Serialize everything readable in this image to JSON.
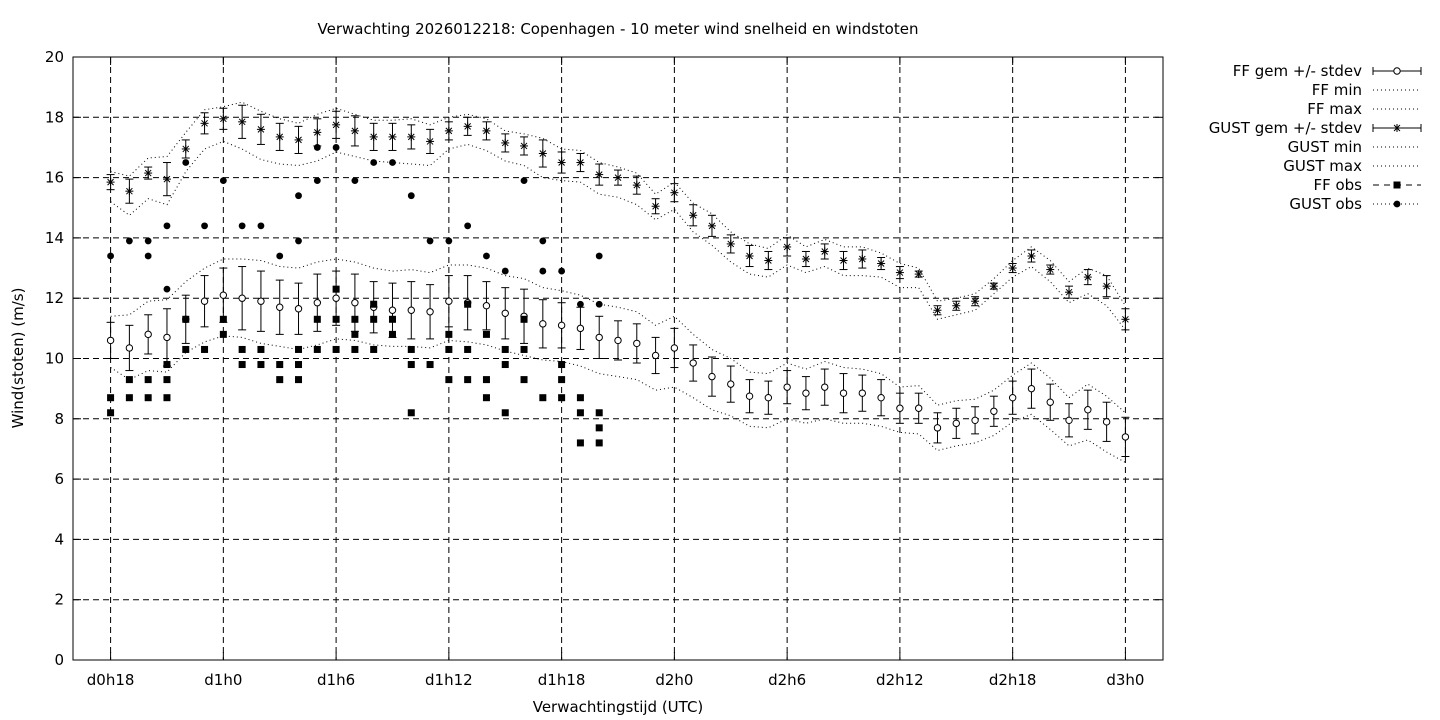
{
  "chart_data": {
    "type": "line",
    "title": "Verwachting 2026012218: Copenhagen - 10 meter wind snelheid en windstoten",
    "xlabel": "Verwachtingstijd (UTC)",
    "ylabel": "Wind(stoten) (m/s)",
    "x_unit": "forecast hours after 2026012218",
    "xlim": [
      -2,
      56
    ],
    "ylim": [
      0,
      20
    ],
    "x_ticks": [
      {
        "x": 0,
        "label": "d0h18"
      },
      {
        "x": 6,
        "label": "d1h0"
      },
      {
        "x": 12,
        "label": "d1h6"
      },
      {
        "x": 18,
        "label": "d1h12"
      },
      {
        "x": 24,
        "label": "d1h18"
      },
      {
        "x": 30,
        "label": "d2h0"
      },
      {
        "x": 36,
        "label": "d2h6"
      },
      {
        "x": 42,
        "label": "d2h12"
      },
      {
        "x": 48,
        "label": "d2h18"
      },
      {
        "x": 54,
        "label": "d3h0"
      }
    ],
    "y_ticks": [
      "0",
      "2",
      "4",
      "6",
      "8",
      "10",
      "12",
      "14",
      "16",
      "18",
      "20"
    ],
    "grid": true,
    "legend_position": "outside-top-right",
    "x": [
      0,
      1,
      2,
      3,
      4,
      5,
      6,
      7,
      8,
      9,
      10,
      11,
      12,
      13,
      14,
      15,
      16,
      17,
      18,
      19,
      20,
      21,
      22,
      23,
      24,
      25,
      26,
      27,
      28,
      29,
      30,
      31,
      32,
      33,
      34,
      35,
      36,
      37,
      38,
      39,
      40,
      41,
      42,
      43,
      44,
      45,
      46,
      47,
      48,
      49,
      50,
      51,
      52,
      53,
      54
    ],
    "series": [
      {
        "name": "FF gem +/- stdev",
        "style": "errorbars-open-circle",
        "values": [
          10.6,
          10.35,
          10.8,
          10.7,
          11.3,
          11.9,
          12.1,
          12.0,
          11.9,
          11.7,
          11.65,
          11.85,
          12.0,
          11.85,
          11.7,
          11.6,
          11.6,
          11.55,
          11.9,
          11.85,
          11.75,
          11.5,
          11.4,
          11.15,
          11.1,
          11.0,
          10.7,
          10.6,
          10.5,
          10.1,
          10.35,
          9.85,
          9.4,
          9.15,
          8.75,
          8.7,
          9.05,
          8.85,
          9.05,
          8.85,
          8.85,
          8.7,
          8.35,
          8.35,
          7.7,
          7.85,
          7.95,
          8.25,
          8.7,
          9.0,
          8.55,
          7.95,
          8.3,
          7.9,
          7.4
        ],
        "stdev": [
          0.6,
          0.75,
          0.65,
          0.95,
          0.8,
          0.85,
          0.9,
          1.05,
          1.0,
          0.9,
          0.85,
          0.95,
          0.9,
          0.95,
          0.85,
          0.9,
          0.95,
          0.9,
          0.85,
          0.9,
          0.8,
          0.85,
          0.9,
          0.8,
          0.75,
          0.7,
          0.7,
          0.65,
          0.65,
          0.6,
          0.65,
          0.6,
          0.65,
          0.6,
          0.55,
          0.55,
          0.55,
          0.55,
          0.6,
          0.65,
          0.6,
          0.6,
          0.5,
          0.5,
          0.5,
          0.5,
          0.45,
          0.5,
          0.55,
          0.65,
          0.6,
          0.55,
          0.65,
          0.65,
          0.65
        ]
      },
      {
        "name": "FF min",
        "style": "dotted",
        "values": [
          9.7,
          9.3,
          9.6,
          9.55,
          10.2,
          10.55,
          10.75,
          10.7,
          10.5,
          10.4,
          10.3,
          10.45,
          10.65,
          10.6,
          10.45,
          10.4,
          10.4,
          10.35,
          10.6,
          10.55,
          10.45,
          10.25,
          10.1,
          9.95,
          9.9,
          9.75,
          9.5,
          9.4,
          9.3,
          8.95,
          9.05,
          8.7,
          8.3,
          8.1,
          7.75,
          7.7,
          8.0,
          7.85,
          8.0,
          7.85,
          7.85,
          7.75,
          7.55,
          7.5,
          6.95,
          7.1,
          7.2,
          7.45,
          7.9,
          8.15,
          7.65,
          7.1,
          7.3,
          6.9,
          6.55
        ]
      },
      {
        "name": "FF max",
        "style": "dotted",
        "values": [
          11.4,
          11.45,
          11.9,
          11.95,
          12.55,
          13.0,
          13.3,
          13.3,
          13.25,
          13.05,
          13.0,
          13.2,
          13.3,
          13.2,
          13.0,
          12.9,
          12.95,
          12.85,
          13.1,
          13.1,
          13.0,
          12.75,
          12.65,
          12.35,
          12.25,
          12.1,
          11.8,
          11.7,
          11.55,
          11.1,
          11.4,
          10.8,
          10.3,
          10.0,
          9.55,
          9.5,
          9.85,
          9.65,
          9.9,
          9.7,
          9.65,
          9.5,
          9.05,
          9.1,
          8.45,
          8.6,
          8.65,
          8.95,
          9.45,
          9.85,
          9.35,
          8.7,
          9.15,
          8.75,
          8.2
        ]
      },
      {
        "name": "GUST gem +/- stdev",
        "style": "errorbars-star",
        "values": [
          15.85,
          15.55,
          16.15,
          15.95,
          16.95,
          17.8,
          17.95,
          17.85,
          17.6,
          17.35,
          17.25,
          17.5,
          17.75,
          17.55,
          17.35,
          17.35,
          17.35,
          17.2,
          17.55,
          17.7,
          17.55,
          17.15,
          17.05,
          16.8,
          16.5,
          16.5,
          16.1,
          16.0,
          15.75,
          15.05,
          15.5,
          14.75,
          14.4,
          13.8,
          13.4,
          13.25,
          13.7,
          13.3,
          13.55,
          13.25,
          13.3,
          13.15,
          12.85,
          12.8,
          11.6,
          11.75,
          11.9,
          12.4,
          13.0,
          13.4,
          12.95,
          12.2,
          12.7,
          12.4,
          11.3
        ],
        "stdev": [
          0.25,
          0.4,
          0.2,
          0.55,
          0.3,
          0.35,
          0.35,
          0.55,
          0.5,
          0.45,
          0.45,
          0.45,
          0.45,
          0.5,
          0.45,
          0.45,
          0.4,
          0.4,
          0.3,
          0.3,
          0.3,
          0.3,
          0.3,
          0.45,
          0.35,
          0.3,
          0.35,
          0.25,
          0.3,
          0.25,
          0.3,
          0.35,
          0.35,
          0.3,
          0.35,
          0.3,
          0.3,
          0.25,
          0.25,
          0.3,
          0.3,
          0.2,
          0.2,
          0.1,
          0.15,
          0.15,
          0.15,
          0.1,
          0.15,
          0.2,
          0.15,
          0.2,
          0.25,
          0.35,
          0.35
        ]
      },
      {
        "name": "GUST min",
        "style": "dotted",
        "values": [
          15.2,
          14.75,
          15.3,
          15.1,
          16.2,
          16.95,
          17.2,
          16.95,
          16.6,
          16.45,
          16.4,
          16.55,
          16.85,
          16.7,
          16.55,
          16.5,
          16.45,
          16.4,
          16.95,
          17.1,
          16.9,
          16.55,
          16.4,
          16.0,
          15.9,
          15.85,
          15.45,
          15.35,
          15.1,
          14.6,
          14.95,
          14.2,
          13.75,
          13.2,
          12.8,
          12.7,
          13.1,
          12.85,
          13.05,
          12.75,
          12.75,
          12.7,
          12.35,
          12.35,
          11.3,
          11.45,
          11.6,
          12.15,
          12.7,
          13.05,
          12.55,
          11.85,
          12.15,
          11.75,
          10.95
        ]
      },
      {
        "name": "GUST max",
        "style": "dotted",
        "values": [
          16.2,
          16.05,
          16.65,
          16.7,
          17.5,
          18.25,
          18.35,
          18.5,
          18.2,
          17.95,
          17.8,
          18.1,
          18.3,
          18.1,
          17.9,
          17.9,
          17.95,
          17.75,
          18.0,
          18.1,
          17.95,
          17.55,
          17.45,
          17.3,
          16.95,
          16.9,
          16.5,
          16.35,
          16.15,
          15.45,
          15.85,
          15.15,
          14.8,
          14.2,
          13.8,
          13.65,
          14.1,
          13.7,
          13.95,
          13.7,
          13.7,
          13.5,
          13.15,
          13.0,
          11.9,
          12.0,
          12.15,
          12.65,
          13.25,
          13.7,
          13.25,
          12.55,
          13.0,
          12.75,
          11.75
        ]
      },
      {
        "name": "FF obs",
        "style": "filled-square",
        "points": [
          [
            0,
            8.7
          ],
          [
            0,
            8.2
          ],
          [
            1,
            9.3
          ],
          [
            1,
            8.7
          ],
          [
            2,
            9.3
          ],
          [
            2,
            8.7
          ],
          [
            3,
            9.8
          ],
          [
            3,
            9.3
          ],
          [
            3,
            8.7
          ],
          [
            4,
            11.3
          ],
          [
            4,
            10.3
          ],
          [
            5,
            10.3
          ],
          [
            6,
            11.3
          ],
          [
            6,
            10.8
          ],
          [
            7,
            10.3
          ],
          [
            7,
            9.8
          ],
          [
            8,
            10.3
          ],
          [
            8,
            9.8
          ],
          [
            9,
            9.8
          ],
          [
            9,
            9.3
          ],
          [
            10,
            10.3
          ],
          [
            10,
            9.8
          ],
          [
            10,
            9.3
          ],
          [
            11,
            11.3
          ],
          [
            11,
            10.3
          ],
          [
            12,
            12.3
          ],
          [
            12,
            11.3
          ],
          [
            12,
            10.3
          ],
          [
            13,
            11.3
          ],
          [
            13,
            10.8
          ],
          [
            13,
            10.3
          ],
          [
            14,
            11.8
          ],
          [
            14,
            11.3
          ],
          [
            14,
            10.3
          ],
          [
            15,
            11.3
          ],
          [
            15,
            10.8
          ],
          [
            16,
            10.3
          ],
          [
            16,
            9.8
          ],
          [
            16,
            8.2
          ],
          [
            17,
            9.8
          ],
          [
            18,
            10.8
          ],
          [
            18,
            10.3
          ],
          [
            18,
            9.3
          ],
          [
            19,
            11.8
          ],
          [
            19,
            10.3
          ],
          [
            19,
            9.3
          ],
          [
            20,
            10.8
          ],
          [
            20,
            9.3
          ],
          [
            20,
            8.7
          ],
          [
            21,
            10.3
          ],
          [
            21,
            9.8
          ],
          [
            21,
            8.2
          ],
          [
            22,
            11.3
          ],
          [
            22,
            10.3
          ],
          [
            22,
            9.3
          ],
          [
            23,
            8.7
          ],
          [
            24,
            9.8
          ],
          [
            24,
            9.3
          ],
          [
            24,
            8.7
          ],
          [
            25,
            8.7
          ],
          [
            25,
            8.2
          ],
          [
            25,
            7.2
          ],
          [
            26,
            8.2
          ],
          [
            26,
            7.7
          ],
          [
            26,
            7.2
          ]
        ]
      },
      {
        "name": "GUST obs",
        "style": "filled-circle",
        "points": [
          [
            0,
            13.4
          ],
          [
            1,
            13.9
          ],
          [
            2,
            13.9
          ],
          [
            2,
            13.4
          ],
          [
            3,
            14.4
          ],
          [
            3,
            12.3
          ],
          [
            4,
            16.5
          ],
          [
            5,
            14.4
          ],
          [
            6,
            15.9
          ],
          [
            7,
            14.4
          ],
          [
            8,
            14.4
          ],
          [
            9,
            13.4
          ],
          [
            10,
            15.4
          ],
          [
            10,
            13.9
          ],
          [
            11,
            17.0
          ],
          [
            11,
            15.9
          ],
          [
            12,
            17.0
          ],
          [
            13,
            15.9
          ],
          [
            14,
            16.5
          ],
          [
            15,
            16.5
          ],
          [
            16,
            15.4
          ],
          [
            17,
            13.9
          ],
          [
            18,
            13.9
          ],
          [
            19,
            14.4
          ],
          [
            20,
            13.4
          ],
          [
            21,
            12.9
          ],
          [
            22,
            15.9
          ],
          [
            23,
            13.9
          ],
          [
            23,
            12.9
          ],
          [
            24,
            12.9
          ],
          [
            25,
            11.8
          ],
          [
            26,
            13.4
          ],
          [
            26,
            11.8
          ]
        ]
      }
    ]
  }
}
